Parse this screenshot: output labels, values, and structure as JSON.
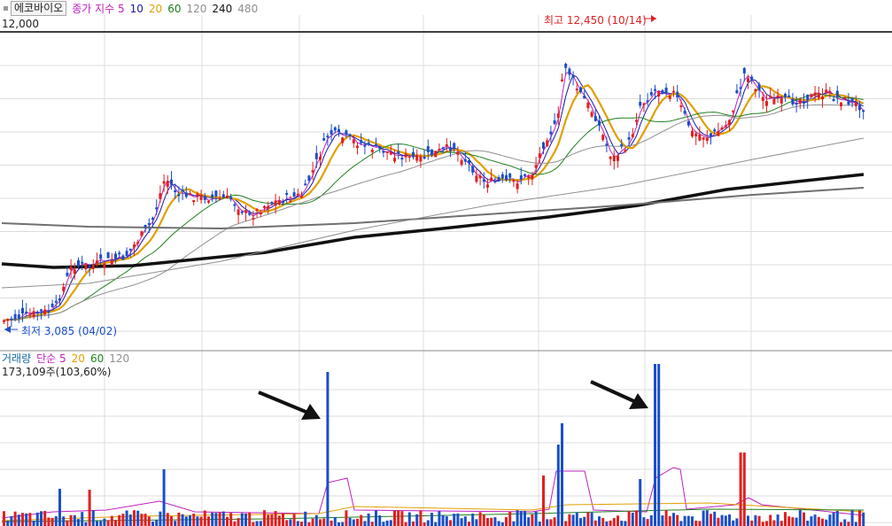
{
  "stock_tab": "에코바이오",
  "price_legend": [
    {
      "label": "종가 지수 5",
      "color": "#c020c0"
    },
    {
      "label": "10",
      "color": "#1a1aa0"
    },
    {
      "label": "20",
      "color": "#e0a000"
    },
    {
      "label": "60",
      "color": "#208020"
    },
    {
      "label": "120",
      "color": "#909090"
    },
    {
      "label": "240",
      "color": "#111111"
    },
    {
      "label": "480",
      "color": "#909090"
    }
  ],
  "price_top_label": "12,000",
  "high_annotation": "최고 12,450 (10/14)",
  "low_annotation": "최저 3,085 (04/02)",
  "volume_legend": [
    {
      "label": "거래량",
      "color": "#1a6aa0"
    },
    {
      "label": "단순 5",
      "color": "#c020c0"
    },
    {
      "label": "20",
      "color": "#e0a000"
    },
    {
      "label": "60",
      "color": "#208020"
    },
    {
      "label": "120",
      "color": "#909090"
    }
  ],
  "volume_value": "173,109주(103,60%)",
  "colors": {
    "up": "#e02020",
    "down": "#1a4fc8",
    "grid": "#dcdcdc",
    "arrow": "#111111"
  },
  "chart_data": {
    "type": "candlestick",
    "title": "에코바이오",
    "yhigh_label": 12000,
    "high": {
      "value": 12450,
      "date": "10/14"
    },
    "low": {
      "value": 3085,
      "date": "04/02"
    },
    "ma_periods": [
      5,
      10,
      20,
      60,
      120,
      240,
      480
    ],
    "volume_ma_periods": [
      5,
      20,
      60,
      120
    ],
    "last_volume": 173109,
    "last_volume_ratio_pct": 103.6
  }
}
